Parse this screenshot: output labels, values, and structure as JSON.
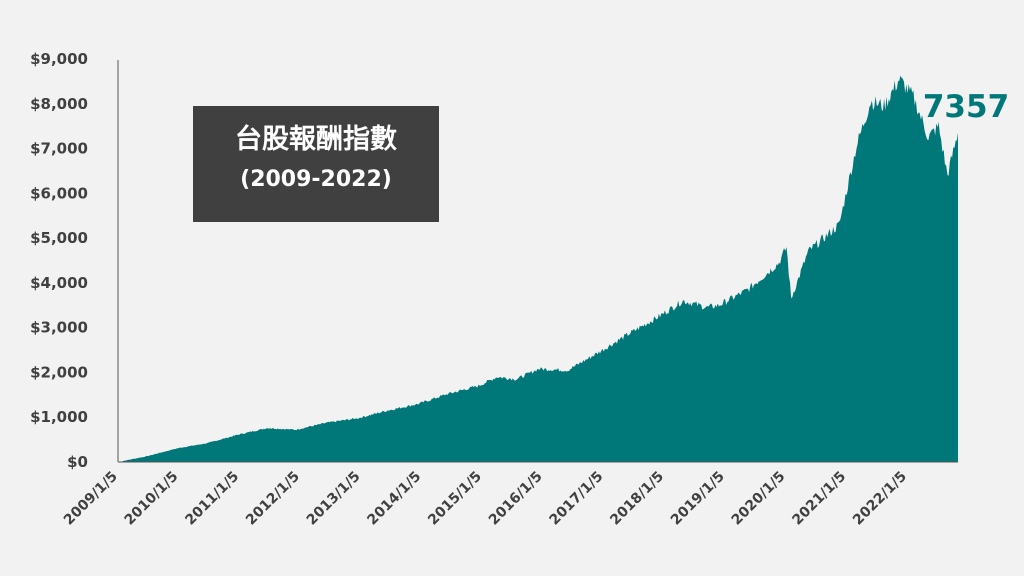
{
  "chart_data": {
    "type": "area",
    "title": "台股報酬指數",
    "subtitle": "(2009-2022)",
    "end_label": "7357",
    "color": "#00787a",
    "ylim": [
      0,
      9000
    ],
    "y_ticks": [
      "$0",
      "$1,000",
      "$2,000",
      "$3,000",
      "$4,000",
      "$5,000",
      "$6,000",
      "$7,000",
      "$8,000",
      "$9,000"
    ],
    "x_ticks": [
      "2009/1/5",
      "2010/1/5",
      "2011/1/5",
      "2012/1/5",
      "2013/1/5",
      "2014/1/5",
      "2015/1/5",
      "2016/1/5",
      "2017/1/5",
      "2018/1/5",
      "2019/1/5",
      "2020/1/5",
      "2021/1/5",
      "2022/1/5"
    ],
    "x": [
      "2009-01-05",
      "2009-07-01",
      "2010-01-05",
      "2010-07-01",
      "2011-01-05",
      "2011-07-01",
      "2011-12-20",
      "2012-07-01",
      "2013-01-05",
      "2013-07-01",
      "2014-01-05",
      "2014-07-01",
      "2015-01-05",
      "2015-04-28",
      "2015-08-24",
      "2016-01-05",
      "2016-07-01",
      "2017-01-05",
      "2017-07-01",
      "2018-01-05",
      "2018-06-01",
      "2018-10-25",
      "2019-01-05",
      "2019-07-01",
      "2020-01-05",
      "2020-02-20",
      "2020-03-19",
      "2020-07-01",
      "2021-01-05",
      "2021-04-20",
      "2021-07-15",
      "2021-10-05",
      "2022-01-05",
      "2022-04-01",
      "2022-07-01",
      "2022-09-01",
      "2022-10-25",
      "2022-12-28"
    ],
    "values": [
      0,
      130,
      310,
      420,
      610,
      760,
      720,
      880,
      980,
      1150,
      1300,
      1520,
      1700,
      1900,
      1850,
      2080,
      2050,
      2450,
      2850,
      3250,
      3600,
      3450,
      3500,
      3850,
      4450,
      4800,
      3650,
      4700,
      5300,
      7050,
      8050,
      7950,
      8550,
      8150,
      7250,
      7500,
      6400,
      7357
    ]
  }
}
